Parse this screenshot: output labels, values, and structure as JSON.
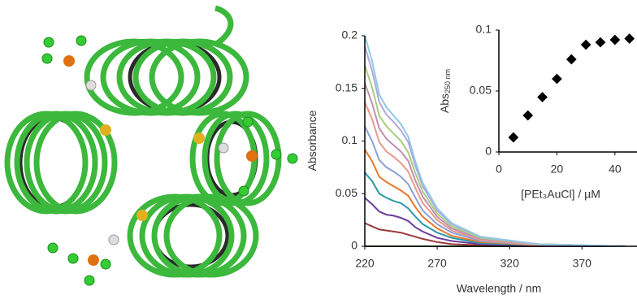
{
  "chart_data": [
    {
      "type": "line",
      "y_label": "Absorbance",
      "x_label": "Wavelength / nm",
      "x": [
        220,
        225,
        230,
        235,
        240,
        245,
        250,
        255,
        260,
        270,
        280,
        300,
        340,
        400
      ],
      "xlim": [
        220,
        408
      ],
      "xticks": [
        220,
        270,
        320,
        370
      ],
      "ylim": [
        0,
        0.2
      ],
      "yticks": [
        0,
        0.05,
        0.1,
        0.15,
        0.2
      ],
      "series": [
        {
          "color": "#3a8a50",
          "values": [
            0,
            0,
            0,
            0,
            0,
            0,
            0,
            0,
            0,
            0,
            0,
            0,
            0,
            0
          ]
        },
        {
          "color": "#9b3a3a",
          "values": [
            0.022,
            0.019,
            0.016,
            0.015,
            0.014,
            0.013,
            0.011,
            0.009,
            0.007,
            0.004,
            0.002,
            0.001,
            0,
            0
          ]
        },
        {
          "color": "#6a3d9a",
          "values": [
            0.046,
            0.04,
            0.033,
            0.03,
            0.029,
            0.027,
            0.024,
            0.018,
            0.014,
            0.008,
            0.005,
            0.002,
            0,
            0
          ]
        },
        {
          "color": "#2a9aa8",
          "values": [
            0.07,
            0.062,
            0.05,
            0.046,
            0.043,
            0.041,
            0.036,
            0.028,
            0.021,
            0.013,
            0.008,
            0.003,
            0.001,
            0
          ]
        },
        {
          "color": "#e8782a",
          "values": [
            0.092,
            0.081,
            0.066,
            0.061,
            0.057,
            0.053,
            0.048,
            0.037,
            0.028,
            0.017,
            0.01,
            0.004,
            0.001,
            0
          ]
        },
        {
          "color": "#8aa0d8",
          "values": [
            0.114,
            0.1,
            0.082,
            0.075,
            0.071,
            0.066,
            0.059,
            0.046,
            0.034,
            0.021,
            0.013,
            0.005,
            0.001,
            0
          ]
        },
        {
          "color": "#e89a8a",
          "values": [
            0.137,
            0.121,
            0.099,
            0.09,
            0.085,
            0.079,
            0.071,
            0.055,
            0.041,
            0.025,
            0.015,
            0.006,
            0.001,
            0
          ]
        },
        {
          "color": "#c090b0",
          "values": [
            0.155,
            0.136,
            0.112,
            0.102,
            0.096,
            0.09,
            0.081,
            0.062,
            0.047,
            0.028,
            0.017,
            0.007,
            0.002,
            0
          ]
        },
        {
          "color": "#a8cc80",
          "values": [
            0.172,
            0.151,
            0.124,
            0.114,
            0.107,
            0.1,
            0.089,
            0.069,
            0.052,
            0.031,
            0.019,
            0.008,
            0.002,
            0
          ]
        },
        {
          "color": "#b0a8d8",
          "values": [
            0.19,
            0.167,
            0.137,
            0.125,
            0.118,
            0.11,
            0.099,
            0.076,
            0.057,
            0.034,
            0.021,
            0.009,
            0.002,
            0
          ]
        },
        {
          "color": "#90c8e8",
          "values": [
            0.2,
            0.176,
            0.144,
            0.132,
            0.124,
            0.116,
            0.104,
            0.08,
            0.06,
            0.036,
            0.022,
            0.009,
            0.002,
            0
          ]
        }
      ]
    },
    {
      "type": "scatter",
      "y_label": "Abs",
      "y_label_sub": "250 nm",
      "x_label": "[PEt₃AuCl] / µM",
      "x": [
        5,
        10,
        15,
        20,
        25,
        30,
        35,
        40,
        45
      ],
      "values": [
        0.012,
        0.03,
        0.045,
        0.06,
        0.076,
        0.088,
        0.09,
        0.092,
        0.093
      ],
      "color": "#000000",
      "xlim": [
        0,
        47.6
      ],
      "xticks": [
        0,
        20,
        40
      ],
      "ylim": [
        0,
        0.1
      ],
      "yticks": [
        0,
        0.05,
        0.1
      ]
    }
  ]
}
